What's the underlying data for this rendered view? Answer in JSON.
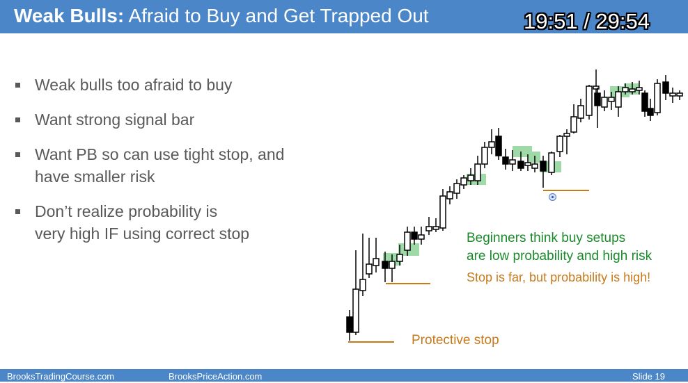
{
  "slide": {
    "title_bold": "Weak Bulls:",
    "title_rest": " Afraid to Buy and Get Trapped Out",
    "timer": "19:51 / 29:54",
    "bullets": [
      {
        "line1": "Weak bulls too afraid to buy",
        "line2": ""
      },
      {
        "line1": "Want strong signal bar",
        "line2": ""
      },
      {
        "line1": "Want PB so can use tight stop, and",
        "line2": "have smaller risk"
      },
      {
        "line1": "Don’t realize probability is",
        "line2": "very high IF using correct stop"
      }
    ],
    "annotations": {
      "beginners_1": "Beginners think buy setups",
      "beginners_2": "are low probability and high risk",
      "stop_far": "Stop is far, but probability is high!",
      "protective": "Protective stop"
    },
    "footer": {
      "left": "BrooksTradingCourse.com",
      "middle": "BrooksPriceAction.com",
      "right": "Slide  19"
    },
    "colors": {
      "title_bar": "#4a86c8",
      "bullet_text": "#595959",
      "green_text": "#1a8a2a",
      "orange_text": "#c87a1a",
      "highlight": "#8fd39a"
    }
  }
}
